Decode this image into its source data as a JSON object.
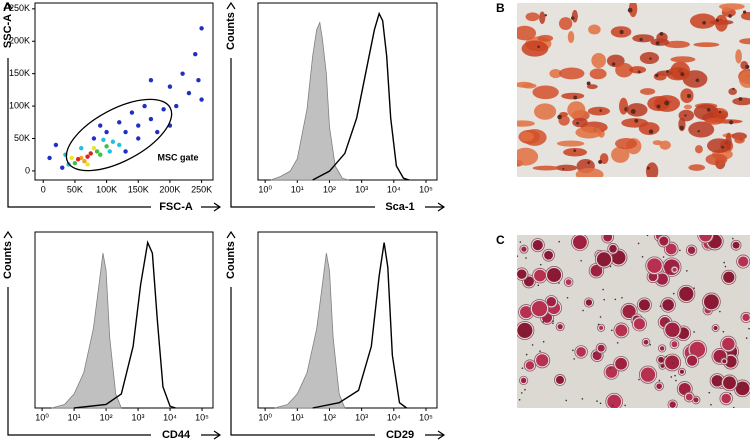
{
  "panel_labels": [
    "A",
    "B",
    "C"
  ],
  "chart_data": [
    {
      "type": "scatter",
      "xlabel": "FSC-A",
      "ylabel": "SSC-A",
      "annotation": "MSC gate",
      "xlim": [
        -13000,
        268000
      ],
      "ylim": [
        -14000,
        259000
      ],
      "xticks": [
        {
          "value": 0,
          "label": "0"
        },
        {
          "value": 50000,
          "label": "50K"
        },
        {
          "value": 100000,
          "label": "100K"
        },
        {
          "value": 150000,
          "label": "150K"
        },
        {
          "value": 200000,
          "label": "200K"
        },
        {
          "value": 250000,
          "label": "250K"
        }
      ],
      "yticks": [
        {
          "value": 0,
          "label": "0"
        },
        {
          "value": 50000,
          "label": "50K"
        },
        {
          "value": 100000,
          "label": "100K"
        },
        {
          "value": 150000,
          "label": "150K"
        },
        {
          "value": 200000,
          "label": "200K"
        },
        {
          "value": 250000,
          "label": "250K"
        }
      ],
      "x": [
        130000,
        150000,
        170000,
        190000,
        210000,
        230000,
        250000,
        200000,
        160000,
        140000,
        180000,
        120000,
        100000,
        90000,
        220000,
        240000,
        30000,
        20000,
        10000,
        170000,
        250000,
        130000,
        200000,
        80000,
        150000,
        245000,
        40000,
        110000,
        95000,
        120000,
        35000,
        60000,
        105000,
        50000,
        85000,
        90000,
        45000,
        80000,
        70000,
        100000,
        60000,
        70000,
        65000,
        75000,
        55000
      ],
      "y": [
        60000,
        70000,
        80000,
        95000,
        100000,
        120000,
        110000,
        130000,
        100000,
        90000,
        60000,
        75000,
        60000,
        70000,
        150000,
        180000,
        5000,
        40000,
        20000,
        140000,
        220000,
        30000,
        70000,
        50000,
        50000,
        140000,
        10000,
        45000,
        48000,
        40000,
        25000,
        35000,
        30000,
        12000,
        30000,
        25000,
        20000,
        35000,
        10000,
        38000,
        20000,
        22000,
        15000,
        27000,
        18000
      ],
      "colors": [
        "#2030c0",
        "#2030c0",
        "#2030c0",
        "#2030c0",
        "#2030c0",
        "#2030c0",
        "#2030c0",
        "#2030c0",
        "#2030c0",
        "#2030c0",
        "#2030c0",
        "#2030c0",
        "#2030c0",
        "#2030c0",
        "#2030c0",
        "#2030c0",
        "#2030c0",
        "#2030c0",
        "#2030c0",
        "#2030c0",
        "#2030c0",
        "#2030c0",
        "#2030c0",
        "#2030c0",
        "#2030c0",
        "#2030c0",
        "#20c0e0",
        "#20c0e0",
        "#20c0e0",
        "#20c0e0",
        "#20c0e0",
        "#20c0e0",
        "#20c0e0",
        "#40c040",
        "#40c040",
        "#40c040",
        "#e8e820",
        "#e8e820",
        "#e8e820",
        "#40c040",
        "#f5a020",
        "#e02020",
        "#f5a020",
        "#e02020",
        "#e02020"
      ]
    },
    {
      "type": "line",
      "xlabel": "Sca-1",
      "ylabel": "Counts",
      "log_x": true,
      "xlim": [
        0.6,
        220000
      ],
      "ylim": [
        0,
        100
      ],
      "xticks": [
        {
          "value": 1,
          "label": "10⁰"
        },
        {
          "value": 10,
          "label": "10¹"
        },
        {
          "value": 100,
          "label": "10²"
        },
        {
          "value": 1000,
          "label": "10³"
        },
        {
          "value": 10000,
          "label": "10⁴"
        },
        {
          "value": 100000,
          "label": "10⁵"
        }
      ],
      "series": [
        {
          "color": "#808080",
          "fill": "#c0c0c0",
          "x": [
            1.5,
            3,
            6,
            10,
            20,
            30,
            40,
            50,
            60,
            80,
            100,
            150,
            250,
            400
          ],
          "values": [
            0,
            2,
            5,
            12,
            40,
            70,
            85,
            89,
            80,
            60,
            30,
            8,
            1,
            0
          ]
        },
        {
          "color": "#000000",
          "x": [
            30,
            100,
            300,
            700,
            1500,
            2500,
            3500,
            4500,
            6000,
            8000,
            12000,
            20000,
            30000
          ],
          "values": [
            0,
            5,
            15,
            35,
            65,
            85,
            94,
            90,
            70,
            35,
            8,
            1,
            0
          ]
        }
      ]
    },
    {
      "type": "line",
      "xlabel": "CD44",
      "ylabel": "Counts",
      "log_x": true,
      "xlim": [
        0.6,
        220000
      ],
      "ylim": [
        0,
        100
      ],
      "xticks": [
        {
          "value": 1,
          "label": "10⁰"
        },
        {
          "value": 10,
          "label": "10¹"
        },
        {
          "value": 100,
          "label": "10²"
        },
        {
          "value": 1000,
          "label": "10³"
        },
        {
          "value": 10000,
          "label": "10⁴"
        },
        {
          "value": 100000,
          "label": "10⁵"
        }
      ],
      "series": [
        {
          "color": "#808080",
          "fill": "#c0c0c0",
          "x": [
            2,
            5,
            10,
            20,
            40,
            60,
            80,
            100,
            130,
            200,
            300
          ],
          "values": [
            0,
            2,
            8,
            20,
            45,
            70,
            88,
            78,
            40,
            8,
            0
          ]
        },
        {
          "color": "#000000",
          "x": [
            10,
            100,
            300,
            700,
            1200,
            2000,
            2800,
            4000,
            6000,
            10000,
            15000
          ],
          "values": [
            0,
            2,
            8,
            35,
            70,
            94,
            88,
            50,
            12,
            1,
            0
          ]
        }
      ]
    },
    {
      "type": "line",
      "xlabel": "CD29",
      "ylabel": "Counts",
      "log_x": true,
      "xlim": [
        0.6,
        220000
      ],
      "ylim": [
        0,
        100
      ],
      "xticks": [
        {
          "value": 1,
          "label": "10⁰"
        },
        {
          "value": 10,
          "label": "10¹"
        },
        {
          "value": 100,
          "label": "10²"
        },
        {
          "value": 1000,
          "label": "10³"
        },
        {
          "value": 10000,
          "label": "10⁴"
        },
        {
          "value": 100000,
          "label": "10⁵"
        }
      ],
      "series": [
        {
          "color": "#808080",
          "fill": "#c0c0c0",
          "x": [
            2,
            5,
            10,
            20,
            40,
            60,
            80,
            100,
            130,
            200,
            300
          ],
          "values": [
            0,
            2,
            8,
            20,
            45,
            70,
            88,
            78,
            40,
            8,
            0
          ]
        },
        {
          "color": "#000000",
          "x": [
            30,
            200,
            800,
            2000,
            3500,
            5000,
            6500,
            9000,
            15000,
            25000
          ],
          "values": [
            0,
            3,
            10,
            35,
            75,
            94,
            80,
            30,
            3,
            0
          ]
        }
      ]
    }
  ]
}
